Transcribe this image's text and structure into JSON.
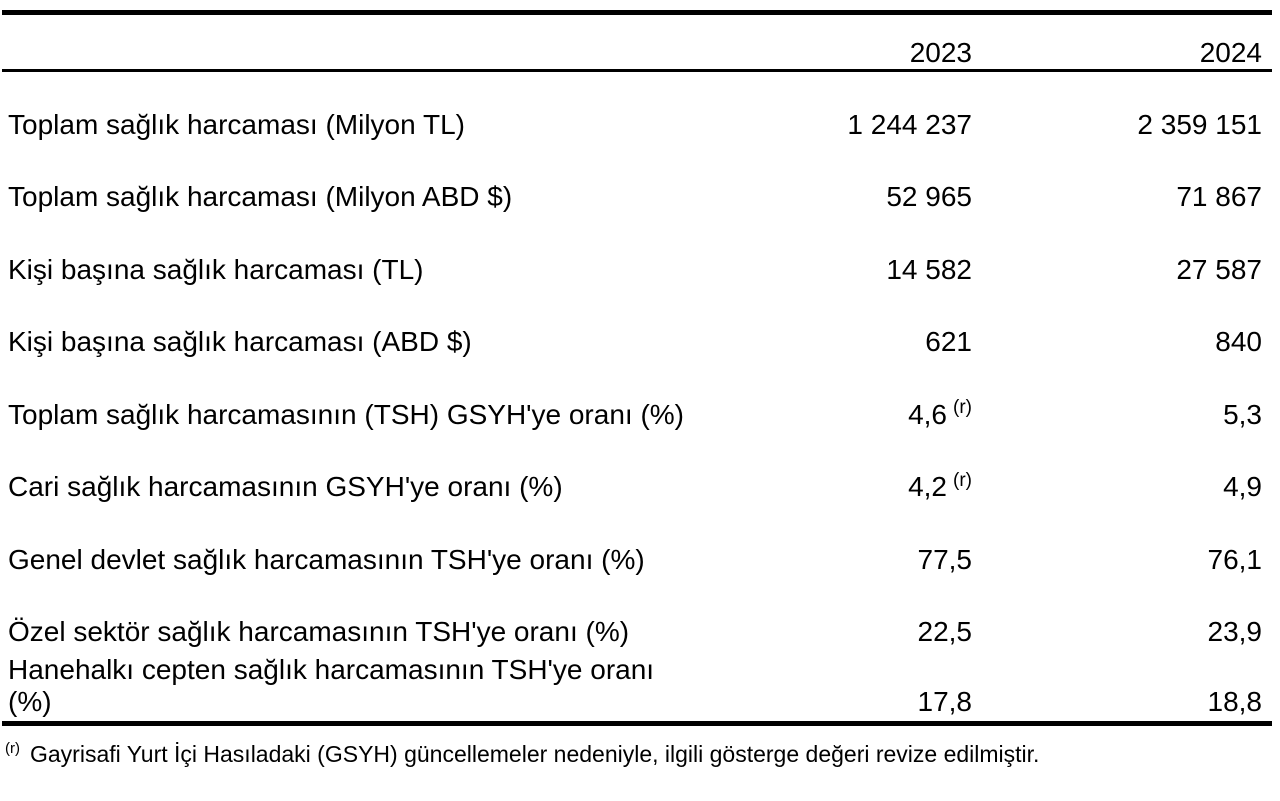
{
  "table": {
    "columns": [
      "2023",
      "2024"
    ],
    "rows": [
      {
        "label": "Toplam sağlık harcaması (Milyon TL)",
        "y2023": "1 244 237",
        "y2024": "2 359 151"
      },
      {
        "label": "Toplam sağlık harcaması (Milyon ABD $)",
        "y2023": "52 965",
        "y2024": "71 867"
      },
      {
        "label": "Kişi başına sağlık harcaması (TL)",
        "y2023": "14 582",
        "y2024": "27 587"
      },
      {
        "label": "Kişi başına sağlık harcaması (ABD $)",
        "y2023": "621",
        "y2024": "840"
      },
      {
        "label": "Toplam sağlık harcamasının (TSH) GSYH'ye oranı (%)",
        "y2023": "4,6",
        "y2023_note": "(r)",
        "y2024": "5,3"
      },
      {
        "label": "Cari sağlık harcamasının GSYH'ye oranı (%)",
        "y2023": "4,2",
        "y2023_note": "(r)",
        "y2024": "4,9"
      },
      {
        "label": "Genel devlet sağlık harcamasının TSH'ye oranı (%)",
        "y2023": "77,5",
        "y2024": "76,1"
      },
      {
        "label": "Özel sektör sağlık harcamasının TSH'ye oranı (%)",
        "y2023": "22,5",
        "y2024": "23,9"
      },
      {
        "label": "Hanehalkı cepten sağlık harcamasının TSH'ye oranı (%)",
        "y2023": "17,8",
        "y2024": "18,8"
      }
    ],
    "footnote": {
      "marker": "(r)",
      "text": "Gayrisafi Yurt İçi Hasıladaki (GSYH) güncellemeler nedeniyle, ilgili gösterge değeri revize edilmiştir."
    }
  },
  "colors": {
    "text": "#000000",
    "rule": "#000000",
    "background": "#ffffff"
  }
}
